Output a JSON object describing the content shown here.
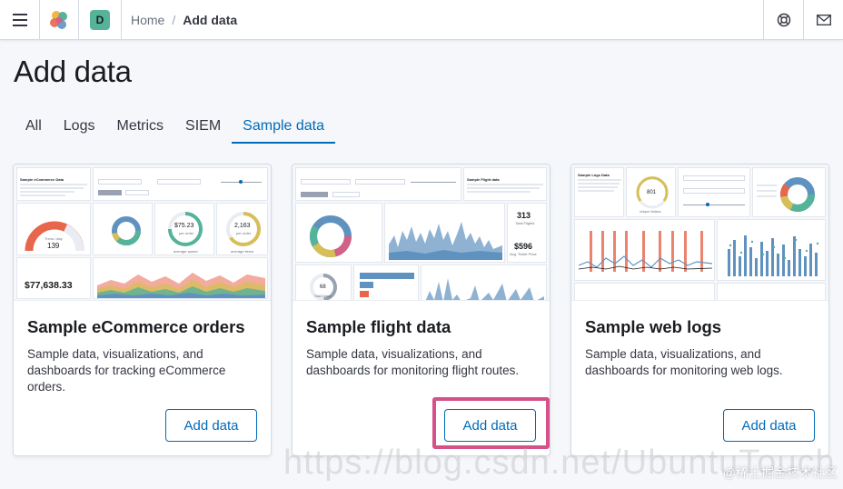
{
  "header": {
    "breadcrumb_home": "Home",
    "breadcrumb_separator": "/",
    "breadcrumb_current": "Add data",
    "space_initial": "D",
    "space_color": "#54b399",
    "icons": [
      "menu-icon",
      "kibana-logo-icon",
      "help-icon",
      "mail-icon"
    ]
  },
  "page": {
    "title": "Add data",
    "tabs": [
      "All",
      "Logs",
      "Metrics",
      "SIEM",
      "Sample data"
    ],
    "selected_tab": "Sample data"
  },
  "cards": [
    {
      "title": "Sample eCommerce orders",
      "description": "Sample data, visualizations, and dashboards for tracking eCommerce orders.",
      "button": "Add data",
      "preview": {
        "gauge_label": "Trxns / day",
        "gauge_value": "139",
        "avg_spend": "$75.23",
        "avg_spend_sub": "per order",
        "avg_spend_caption": "average spend",
        "qty": "2,163",
        "qty_sub": "per order",
        "qty_caption": "average items",
        "total_revenue": "$77,638.33",
        "title_text": "Sample eCommerce Data"
      }
    },
    {
      "title": "Sample flight data",
      "description": "Sample data, visualizations, and dashboards for monitoring flight routes.",
      "button": "Add data",
      "preview": {
        "total_flights": "313",
        "total_flights_caption": "Total Flights",
        "avg_price": "$596",
        "avg_price_caption": "Avg. Ticket Price",
        "delays_value": "68",
        "delays_caption": "Total Delays",
        "title_text": "Sample Flight data"
      }
    },
    {
      "title": "Sample web logs",
      "description": "Sample data, visualizations, and dashboards for monitoring web logs.",
      "button": "Add data",
      "preview": {
        "gauge_value": "801",
        "gauge_caption": "Unique Visitors",
        "title_text": "Sample Logs Data"
      }
    }
  ],
  "watermark": "https://blog.csdn.net/UbuntuTouch",
  "watermark_cn": "@稀土掘金技术社区",
  "colors": {
    "accent": "#006bb8",
    "highlight": "#d6508a",
    "chart_teal": "#54b399",
    "chart_blue": "#6092c0",
    "chart_orange": "#e7664c",
    "chart_yellow": "#d6bf57"
  }
}
